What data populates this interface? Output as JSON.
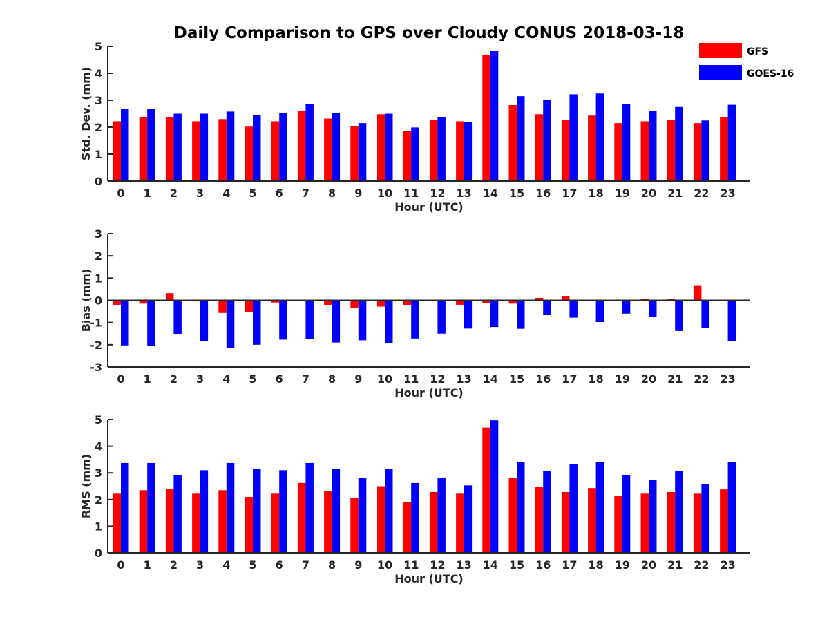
{
  "colors": {
    "GFS": "#ff0000",
    "GOES-16": "#0000ff",
    "axis": "#262626"
  },
  "chart_data": {
    "title": "Daily Comparison to GPS over Cloudy CONUS 2018-03-18",
    "legend": {
      "placement": "top-right",
      "entries": [
        "GFS",
        "GOES-16"
      ]
    },
    "subplots": [
      {
        "type": "bar",
        "ylabel": "Std. Dev. (mm)",
        "xlabel": "Hour (UTC)",
        "ylim": [
          0,
          5
        ],
        "yticks": [
          "0",
          "1",
          "2",
          "3",
          "4",
          "5"
        ],
        "categories": [
          "0",
          "1",
          "2",
          "3",
          "4",
          "5",
          "6",
          "7",
          "8",
          "9",
          "10",
          "11",
          "12",
          "13",
          "14",
          "15",
          "16",
          "17",
          "18",
          "19",
          "20",
          "21",
          "22",
          "23"
        ],
        "series": [
          {
            "name": "GFS",
            "values": [
              2.22,
              2.37,
              2.37,
              2.22,
              2.3,
              2.02,
              2.22,
              2.61,
              2.32,
              2.03,
              2.48,
              1.87,
              2.27,
              2.22,
              4.67,
              2.82,
              2.48,
              2.28,
              2.43,
              2.15,
              2.22,
              2.27,
              2.15,
              2.38
            ]
          },
          {
            "name": "GOES-16",
            "values": [
              2.69,
              2.68,
              2.5,
              2.5,
              2.58,
              2.45,
              2.53,
              2.87,
              2.53,
              2.15,
              2.5,
              1.99,
              2.38,
              2.19,
              4.82,
              3.15,
              3.01,
              3.22,
              3.25,
              2.87,
              2.61,
              2.75,
              2.25,
              2.83
            ]
          }
        ]
      },
      {
        "type": "bar",
        "ylabel": "Bias (mm)",
        "xlabel": "Hour (UTC)",
        "ylim": [
          -3,
          3
        ],
        "yticks": [
          "-3",
          "-2",
          "-1",
          "0",
          "1",
          "2",
          "3"
        ],
        "categories": [
          "0",
          "1",
          "2",
          "3",
          "4",
          "5",
          "6",
          "7",
          "8",
          "9",
          "10",
          "11",
          "12",
          "13",
          "14",
          "15",
          "16",
          "17",
          "18",
          "19",
          "20",
          "21",
          "22",
          "23"
        ],
        "series": [
          {
            "name": "GFS",
            "values": [
              -0.2,
              -0.15,
              0.32,
              -0.05,
              -0.57,
              -0.53,
              -0.1,
              -0.02,
              -0.22,
              -0.33,
              -0.28,
              -0.22,
              -0.03,
              -0.2,
              -0.12,
              -0.15,
              0.11,
              0.18,
              -0.03,
              -0.02,
              0.05,
              0.05,
              0.65,
              0.02
            ]
          },
          {
            "name": "GOES-16",
            "values": [
              -2.03,
              -2.05,
              -1.53,
              -1.85,
              -2.15,
              -2.0,
              -1.77,
              -1.73,
              -1.9,
              -1.8,
              -1.92,
              -1.72,
              -1.5,
              -1.27,
              -1.2,
              -1.28,
              -0.67,
              -0.78,
              -0.98,
              -0.6,
              -0.75,
              -1.38,
              -1.25,
              -1.85
            ]
          }
        ]
      },
      {
        "type": "bar",
        "ylabel": "RMS (mm)",
        "xlabel": "Hour (UTC)",
        "ylim": [
          0,
          5
        ],
        "yticks": [
          "0",
          "1",
          "2",
          "3",
          "4",
          "5"
        ],
        "categories": [
          "0",
          "1",
          "2",
          "3",
          "4",
          "5",
          "6",
          "7",
          "8",
          "9",
          "10",
          "11",
          "12",
          "13",
          "14",
          "15",
          "16",
          "17",
          "18",
          "19",
          "20",
          "21",
          "22",
          "23"
        ],
        "series": [
          {
            "name": "GFS",
            "values": [
              2.22,
              2.35,
              2.4,
              2.22,
              2.35,
              2.1,
              2.22,
              2.62,
              2.33,
              2.05,
              2.5,
              1.9,
              2.28,
              2.22,
              4.7,
              2.8,
              2.48,
              2.28,
              2.43,
              2.13,
              2.22,
              2.28,
              2.22,
              2.38
            ]
          },
          {
            "name": "GOES-16",
            "values": [
              3.37,
              3.37,
              2.92,
              3.1,
              3.37,
              3.15,
              3.1,
              3.37,
              3.15,
              2.8,
              3.15,
              2.62,
              2.82,
              2.53,
              4.97,
              3.4,
              3.08,
              3.32,
              3.4,
              2.92,
              2.72,
              3.08,
              2.57,
              3.4
            ]
          }
        ]
      }
    ]
  }
}
